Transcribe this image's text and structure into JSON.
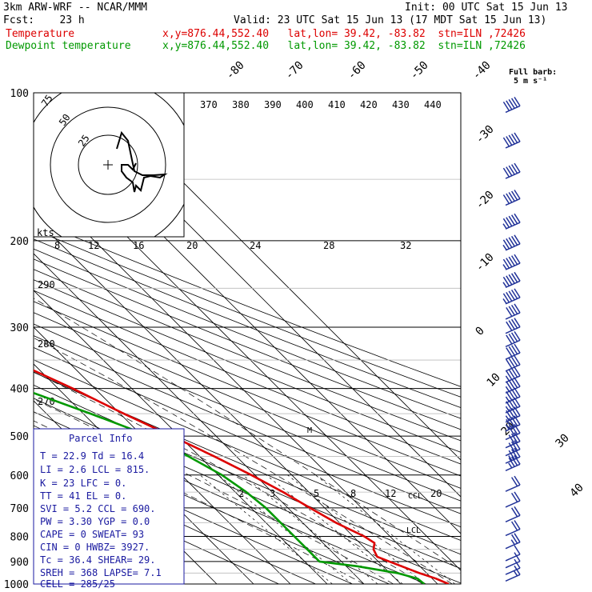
{
  "header": {
    "model": "3km ARW-WRF -- NCAR/MMM",
    "init": "Init: 00 UTC Sat 15 Jun 13",
    "fcst": "Fcst:    23 h",
    "valid": "Valid: 23 UTC Sat 15 Jun 13 (17 MDT Sat 15 Jun 13)",
    "line_temp": {
      "label": "Temperature",
      "info": "x,y=876.44,552.40   lat,lon= 39.42, -83.82  stn=ILN ,72426",
      "color": "#dd0000"
    },
    "line_dew": {
      "label": "Dewpoint temperature",
      "info": "x,y=876.44,552.40   lat,lon= 39.42, -83.82  stn=ILN ,72426",
      "color": "#009900"
    }
  },
  "barb_legend": {
    "title": "Full barb:",
    "sub": "5 m s⁻¹"
  },
  "hodograph": {
    "rings": [
      "75",
      "50",
      "25"
    ],
    "units": "kts"
  },
  "chart_data": {
    "type": "line",
    "p_axis": {
      "ticks": [
        100,
        200,
        300,
        400,
        500,
        600,
        700,
        800,
        900,
        1000
      ]
    },
    "isotherm_labels": [
      "-80",
      "-70",
      "-60",
      "-50",
      "-40",
      "-30",
      "-20",
      "-10",
      "0",
      "10",
      "20",
      "30",
      "40"
    ],
    "theta_labels": [
      "370",
      "380",
      "390",
      "400",
      "410",
      "420",
      "430",
      "440"
    ],
    "pw_labels": [
      "8",
      "12",
      "16",
      "20",
      "24",
      "28",
      "32"
    ],
    "dry_adiabat_labels": [
      "290",
      "280",
      "270"
    ],
    "mixing_labels": [
      "2",
      "3",
      "5",
      "8",
      "12",
      "20"
    ],
    "markers": [
      "M",
      "CCL",
      "LCL"
    ],
    "series": [
      {
        "name": "Temperature",
        "color": "#dd0000",
        "points": [
          [
            100,
            -66
          ],
          [
            115,
            -62
          ],
          [
            140,
            -57
          ],
          [
            160,
            -58
          ],
          [
            170,
            -56
          ],
          [
            185,
            -57
          ],
          [
            200,
            -59
          ],
          [
            250,
            -52
          ],
          [
            300,
            -43
          ],
          [
            350,
            -35
          ],
          [
            400,
            -26
          ],
          [
            450,
            -19
          ],
          [
            500,
            -12
          ],
          [
            550,
            -6
          ],
          [
            600,
            -1
          ],
          [
            650,
            3
          ],
          [
            700,
            6
          ],
          [
            750,
            9
          ],
          [
            800,
            13
          ],
          [
            825,
            14
          ],
          [
            850,
            12
          ],
          [
            880,
            11
          ],
          [
            900,
            13
          ],
          [
            950,
            18
          ],
          [
            975,
            21
          ],
          [
            1000,
            23
          ]
        ]
      },
      {
        "name": "Dewpoint temperature",
        "color": "#009900",
        "points": [
          [
            100,
            -85
          ],
          [
            130,
            -86
          ],
          [
            150,
            -88
          ],
          [
            170,
            -92
          ],
          [
            185,
            -95
          ],
          [
            200,
            -96
          ],
          [
            230,
            -97
          ],
          [
            255,
            -100
          ],
          [
            300,
            -78
          ],
          [
            350,
            -58
          ],
          [
            400,
            -40
          ],
          [
            450,
            -28
          ],
          [
            500,
            -18
          ],
          [
            550,
            -13
          ],
          [
            600,
            -9
          ],
          [
            650,
            -7
          ],
          [
            700,
            -6
          ],
          [
            750,
            -6
          ],
          [
            800,
            -6
          ],
          [
            850,
            -6
          ],
          [
            900,
            -6
          ],
          [
            920,
            3
          ],
          [
            950,
            12
          ],
          [
            975,
            16
          ],
          [
            1000,
            16.4
          ]
        ]
      }
    ],
    "wind_barbs": [
      {
        "p": 110,
        "spd": 50
      },
      {
        "p": 130,
        "spd": 50
      },
      {
        "p": 150,
        "spd": 50
      },
      {
        "p": 170,
        "spd": 50
      },
      {
        "p": 190,
        "spd": 45
      },
      {
        "p": 210,
        "spd": 45
      },
      {
        "p": 230,
        "spd": 45
      },
      {
        "p": 250,
        "spd": 45
      },
      {
        "p": 270,
        "spd": 45
      },
      {
        "p": 290,
        "spd": 40
      },
      {
        "p": 310,
        "spd": 40
      },
      {
        "p": 330,
        "spd": 40
      },
      {
        "p": 350,
        "spd": 40
      },
      {
        "p": 370,
        "spd": 40
      },
      {
        "p": 390,
        "spd": 35
      },
      {
        "p": 410,
        "spd": 35
      },
      {
        "p": 430,
        "spd": 35
      },
      {
        "p": 450,
        "spd": 35
      },
      {
        "p": 470,
        "spd": 35
      },
      {
        "p": 490,
        "spd": 35
      },
      {
        "p": 510,
        "spd": 30
      },
      {
        "p": 530,
        "spd": 30
      },
      {
        "p": 550,
        "spd": 30
      },
      {
        "p": 570,
        "spd": 25
      },
      {
        "p": 590,
        "spd": 25
      },
      {
        "p": 650,
        "spd": 20
      },
      {
        "p": 700,
        "spd": 20
      },
      {
        "p": 750,
        "spd": 20
      },
      {
        "p": 800,
        "spd": 20
      },
      {
        "p": 850,
        "spd": 15
      },
      {
        "p": 900,
        "spd": 10
      },
      {
        "p": 930,
        "spd": 10
      },
      {
        "p": 960,
        "spd": 10
      },
      {
        "p": 990,
        "spd": 5
      }
    ]
  },
  "parcel_info": {
    "title": "Parcel Info",
    "rows": [
      "T  =   22.9  Td =  16.4",
      "LI =    2.6  LCL =  815.",
      "K  =     23  LFC =    0.",
      "TT =     41  EL  =    0.",
      "SVI =   5.2  CCL =  690.",
      "PW =   3.30  YGP =   0.0",
      "CAPE =     0  SWEAT=   93",
      "CIN =      0  HWBZ= 3927.",
      "Tc =   36.4  SHEAR=  29.",
      "SREH =  368  LAPSE=  7.1",
      "CELL = 285/25"
    ]
  }
}
